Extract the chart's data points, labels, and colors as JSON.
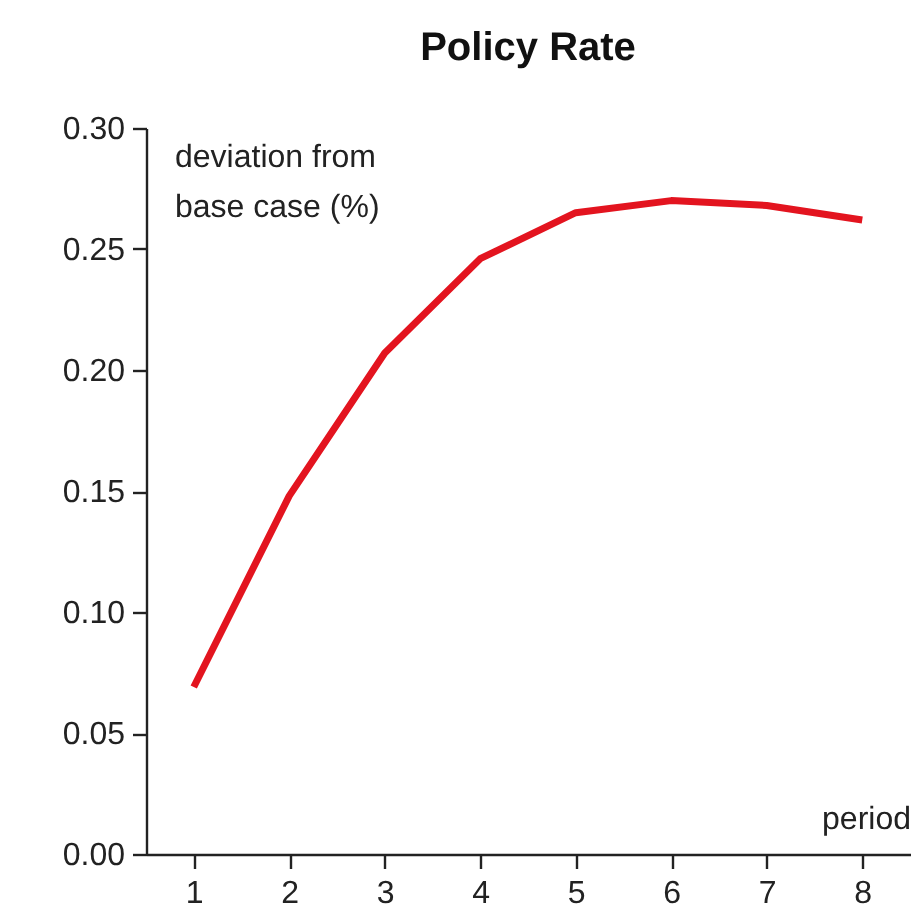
{
  "chart_data": {
    "type": "line",
    "title": "Policy Rate",
    "xlabel": "period",
    "ylabel": "deviation from base case (%)",
    "categories": [
      "1",
      "2",
      "3",
      "4",
      "5",
      "6",
      "7",
      "8"
    ],
    "series": [
      {
        "color": "#e3141f",
        "values": [
          0.069,
          0.148,
          0.207,
          0.246,
          0.265,
          0.27,
          0.268,
          0.262
        ]
      }
    ],
    "ylim": [
      0,
      0.3
    ],
    "yticks": [
      {
        "value": 0,
        "label": "0.00"
      },
      {
        "value": 0.05,
        "label": "0.05"
      },
      {
        "value": 0.1,
        "label": "0.10"
      },
      {
        "value": 0.15,
        "label": "0.15"
      },
      {
        "value": 0.2,
        "label": "0.20"
      },
      {
        "value": 0.25,
        "label": "0.25"
      },
      {
        "value": 0.3,
        "label": "0.30"
      }
    ],
    "grid": false,
    "legend": false,
    "marker": "none",
    "line_style": "solid"
  }
}
